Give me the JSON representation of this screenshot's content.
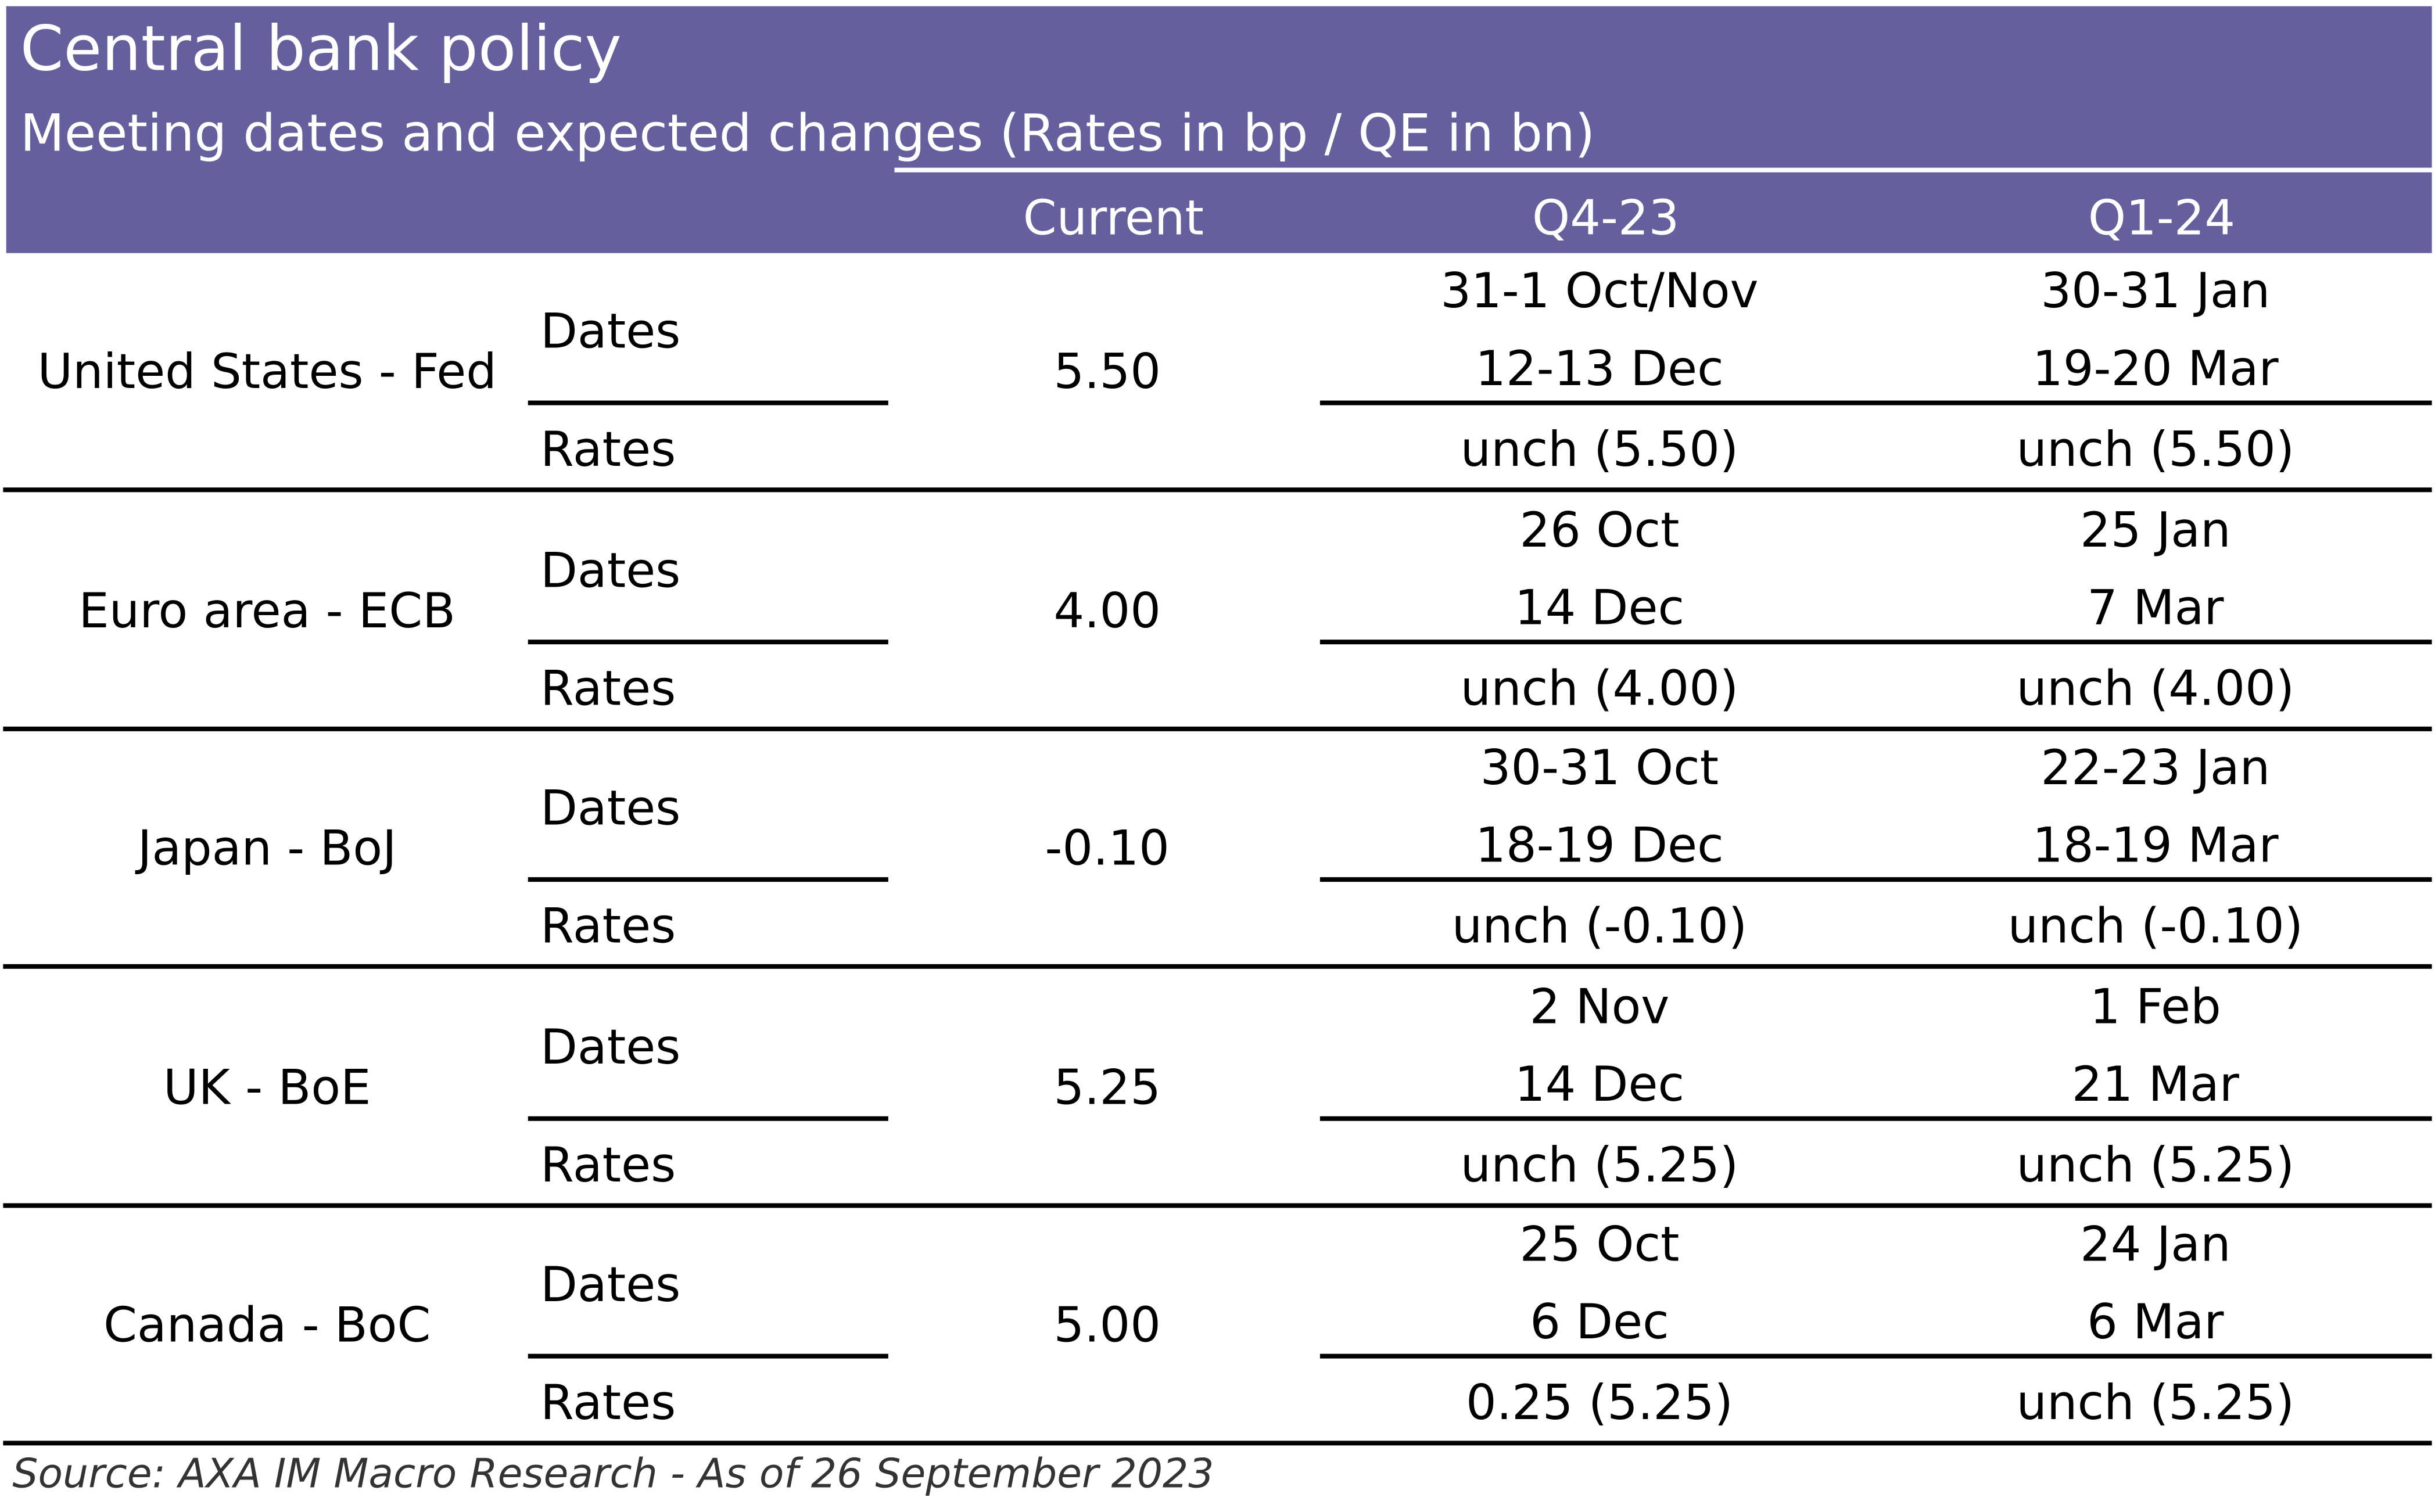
{
  "title": "Central bank policy",
  "subtitle": "Meeting dates and expected changes (Rates in bp / QE in bn)",
  "columns": {
    "current": "Current",
    "q4": "Q4-23",
    "q1": "Q1-24"
  },
  "labels": {
    "dates": "Dates",
    "rates": "Rates"
  },
  "banks": [
    {
      "name": "United States - Fed",
      "current": "5.50",
      "q4_dates": [
        "31-1 Oct/Nov",
        "12-13 Dec"
      ],
      "q1_dates": [
        "30-31 Jan",
        "19-20 Mar"
      ],
      "q4_rate": "unch (5.50)",
      "q1_rate": "unch (5.50)"
    },
    {
      "name": "Euro area - ECB",
      "current": "4.00",
      "q4_dates": [
        "26 Oct",
        "14 Dec"
      ],
      "q1_dates": [
        "25 Jan",
        "7 Mar"
      ],
      "q4_rate": "unch (4.00)",
      "q1_rate": "unch (4.00)"
    },
    {
      "name": "Japan - BoJ",
      "current": "-0.10",
      "q4_dates": [
        "30-31 Oct",
        "18-19 Dec"
      ],
      "q1_dates": [
        "22-23 Jan",
        "18-19 Mar"
      ],
      "q4_rate": "unch (-0.10)",
      "q1_rate": "unch (-0.10)"
    },
    {
      "name": "UK - BoE",
      "current": "5.25",
      "q4_dates": [
        "2 Nov",
        "14 Dec"
      ],
      "q1_dates": [
        "1 Feb",
        "21 Mar"
      ],
      "q4_rate": "unch (5.25)",
      "q1_rate": "unch (5.25)"
    },
    {
      "name": "Canada - BoC",
      "current": "5.00",
      "q4_dates": [
        "25 Oct",
        "6 Dec"
      ],
      "q1_dates": [
        "24 Jan",
        "6 Mar"
      ],
      "q4_rate": "0.25 (5.25)",
      "q1_rate": "unch (5.25)"
    }
  ],
  "source": "Source: AXA IM Macro Research - As of 26 September 2023",
  "colors": {
    "header_bg": "#665f9e",
    "header_text": "#ffffff",
    "rule": "#000000"
  }
}
